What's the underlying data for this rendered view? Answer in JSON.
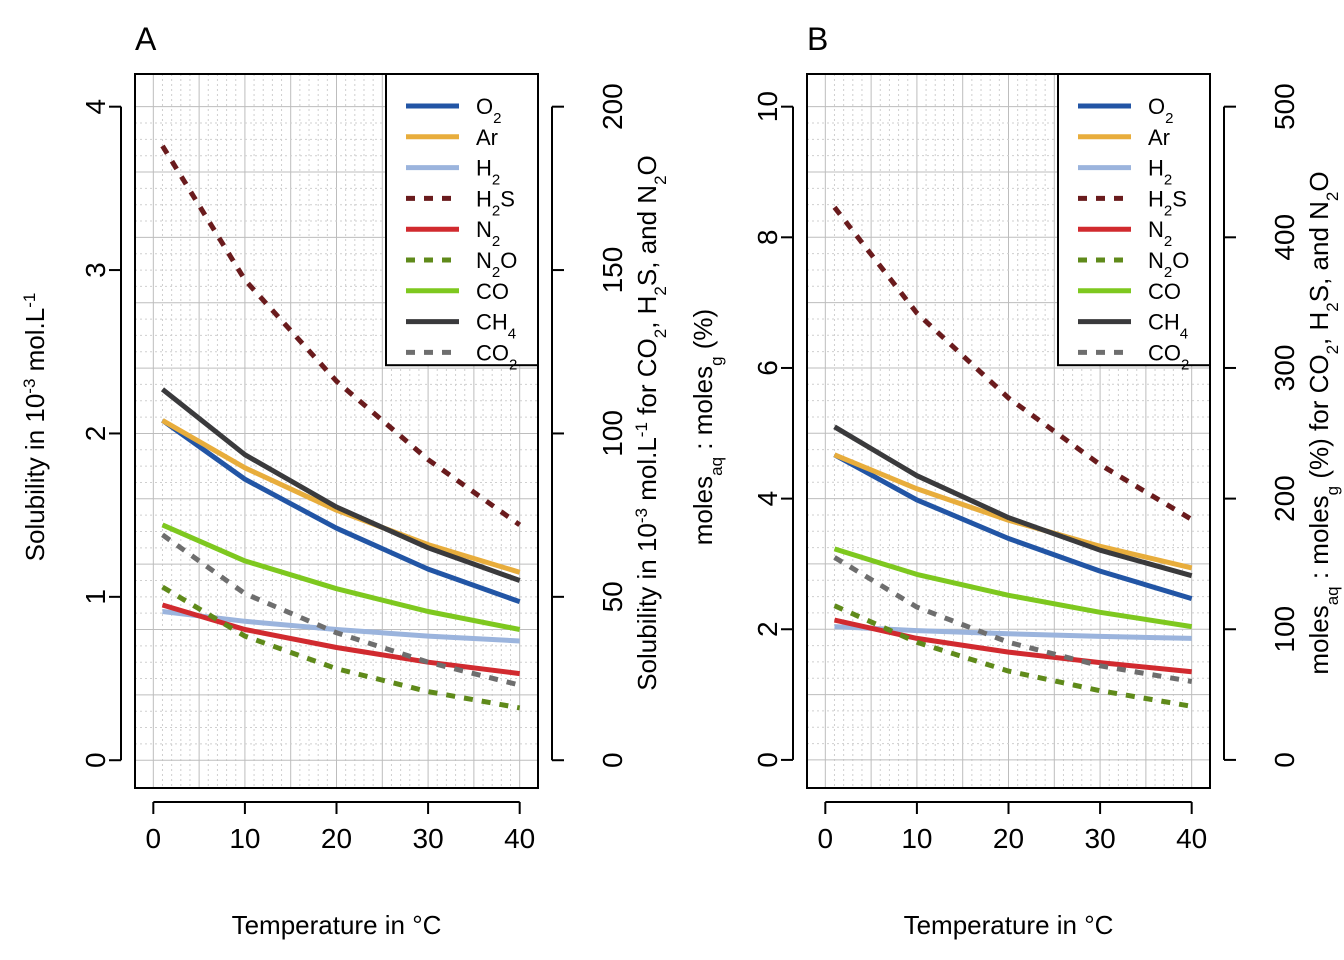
{
  "chart_data": [
    {
      "type": "line",
      "panel_label": "A",
      "xlabel": "Temperature in °C",
      "ylabel_left_html": "Solubility in 10<tspan baseline-shift='super' font-size='17'>-3</tspan> mol.L<tspan baseline-shift='super' font-size='17'>-1</tspan>",
      "ylabel_right_html": "Solubility in 10<tspan baseline-shift='super' font-size='17'>-3</tspan> mol.L<tspan baseline-shift='super' font-size='17'>-1</tspan> for CO<tspan baseline-shift='sub' font-size='17'>2</tspan>, H<tspan baseline-shift='sub' font-size='17'>2</tspan>S, and N<tspan baseline-shift='sub' font-size='17'>2</tspan>O",
      "xlim": [
        -2,
        42
      ],
      "xticks": [
        0,
        10,
        20,
        30,
        40
      ],
      "ylim": [
        -0.17,
        4.2
      ],
      "yticks_left": [
        0,
        1,
        2,
        3,
        4
      ],
      "right_axis_scale": 50,
      "yticks_right": [
        0,
        50,
        100,
        150,
        200
      ],
      "grid": true,
      "legend_position": "top-right",
      "series": [
        {
          "name": "O2",
          "label_html": "O<tspan baseline-shift='sub' font-size='15'>2</tspan>",
          "color": "#2255a5",
          "dashed": false,
          "axis": "left",
          "x": [
            1,
            10,
            20,
            30,
            40
          ],
          "y": [
            2.08,
            1.72,
            1.42,
            1.17,
            0.97
          ]
        },
        {
          "name": "Ar",
          "label_html": "Ar",
          "color": "#e8ad3c",
          "dashed": false,
          "axis": "left",
          "x": [
            1,
            10,
            20,
            30,
            40
          ],
          "y": [
            2.08,
            1.79,
            1.53,
            1.32,
            1.15
          ]
        },
        {
          "name": "H2",
          "label_html": "H<tspan baseline-shift='sub' font-size='15'>2</tspan>",
          "color": "#9bb4dd",
          "dashed": false,
          "axis": "left",
          "x": [
            1,
            10,
            20,
            30,
            40
          ],
          "y": [
            0.91,
            0.85,
            0.8,
            0.76,
            0.73
          ]
        },
        {
          "name": "H2S",
          "label_html": "H<tspan baseline-shift='sub' font-size='15'>2</tspan>S",
          "color": "#6a1b1d",
          "dashed": true,
          "axis": "right",
          "x": [
            1,
            10,
            20,
            30,
            40
          ],
          "y": [
            188,
            147,
            116,
            92,
            72
          ]
        },
        {
          "name": "N2",
          "label_html": "N<tspan baseline-shift='sub' font-size='15'>2</tspan>",
          "color": "#d12a2f",
          "dashed": false,
          "axis": "left",
          "x": [
            1,
            10,
            20,
            30,
            40
          ],
          "y": [
            0.95,
            0.8,
            0.69,
            0.6,
            0.53
          ]
        },
        {
          "name": "N2O",
          "label_html": "N<tspan baseline-shift='sub' font-size='15'>2</tspan>O",
          "color": "#5f8a1a",
          "dashed": true,
          "axis": "right",
          "x": [
            1,
            10,
            20,
            30,
            40
          ],
          "y": [
            53,
            38,
            28,
            21,
            16
          ]
        },
        {
          "name": "CO",
          "label_html": "CO",
          "color": "#7ec81f",
          "dashed": false,
          "axis": "left",
          "x": [
            1,
            10,
            20,
            30,
            40
          ],
          "y": [
            1.44,
            1.22,
            1.05,
            0.91,
            0.8
          ]
        },
        {
          "name": "CH4",
          "label_html": "CH<tspan baseline-shift='sub' font-size='15'>4</tspan>",
          "color": "#3a3a3c",
          "dashed": false,
          "axis": "left",
          "x": [
            1,
            10,
            20,
            30,
            40
          ],
          "y": [
            2.27,
            1.87,
            1.55,
            1.3,
            1.1
          ]
        },
        {
          "name": "CO2",
          "label_html": "CO<tspan baseline-shift='sub' font-size='15'>2</tspan>",
          "color": "#6e6e6e",
          "dashed": true,
          "axis": "right",
          "x": [
            1,
            10,
            20,
            30,
            40
          ],
          "y": [
            69,
            51,
            39,
            30,
            23
          ]
        }
      ]
    },
    {
      "type": "line",
      "panel_label": "B",
      "xlabel": "Temperature in °C",
      "ylabel_left_html": "moles<tspan baseline-shift='sub' font-size='17'>aq</tspan> : moles<tspan baseline-shift='sub' font-size='17'>g</tspan> (%)",
      "ylabel_right_html": "moles<tspan baseline-shift='sub' font-size='17'>aq</tspan> : moles<tspan baseline-shift='sub' font-size='17'>g</tspan> (%) for CO<tspan baseline-shift='sub' font-size='17'>2</tspan>, H<tspan baseline-shift='sub' font-size='17'>2</tspan>S, and N<tspan baseline-shift='sub' font-size='17'>2</tspan>O",
      "xlim": [
        -2,
        42
      ],
      "xticks": [
        0,
        10,
        20,
        30,
        40
      ],
      "ylim": [
        -0.43,
        10.5
      ],
      "yticks_left": [
        0,
        2,
        4,
        6,
        8,
        10
      ],
      "right_axis_scale": 50,
      "yticks_right": [
        0,
        100,
        200,
        300,
        400,
        500
      ],
      "grid": true,
      "legend_position": "top-right",
      "series": [
        {
          "name": "O2",
          "label_html": "O<tspan baseline-shift='sub' font-size='15'>2</tspan>",
          "color": "#2255a5",
          "dashed": false,
          "axis": "left",
          "x": [
            1,
            10,
            20,
            30,
            40
          ],
          "y": [
            4.67,
            3.98,
            3.39,
            2.89,
            2.47
          ]
        },
        {
          "name": "Ar",
          "label_html": "Ar",
          "color": "#e8ad3c",
          "dashed": false,
          "axis": "left",
          "x": [
            1,
            10,
            20,
            30,
            40
          ],
          "y": [
            4.67,
            4.15,
            3.67,
            3.27,
            2.94
          ]
        },
        {
          "name": "H2",
          "label_html": "H<tspan baseline-shift='sub' font-size='15'>2</tspan>",
          "color": "#9bb4dd",
          "dashed": false,
          "axis": "left",
          "x": [
            1,
            10,
            20,
            30,
            40
          ],
          "y": [
            2.04,
            1.98,
            1.93,
            1.89,
            1.86
          ]
        },
        {
          "name": "H2S",
          "label_html": "H<tspan baseline-shift='sub' font-size='15'>2</tspan>S",
          "color": "#6a1b1d",
          "dashed": true,
          "axis": "right",
          "x": [
            1,
            10,
            20,
            30,
            40
          ],
          "y": [
            423,
            342,
            277,
            226,
            184
          ]
        },
        {
          "name": "N2",
          "label_html": "N<tspan baseline-shift='sub' font-size='15'>2</tspan>",
          "color": "#d12a2f",
          "dashed": false,
          "axis": "left",
          "x": [
            1,
            10,
            20,
            30,
            40
          ],
          "y": [
            2.14,
            1.86,
            1.65,
            1.49,
            1.35
          ]
        },
        {
          "name": "N2O",
          "label_html": "N<tspan baseline-shift='sub' font-size='15'>2</tspan>O",
          "color": "#5f8a1a",
          "dashed": true,
          "axis": "right",
          "x": [
            1,
            10,
            20,
            30,
            40
          ],
          "y": [
            118,
            90,
            68,
            53,
            41
          ]
        },
        {
          "name": "CO",
          "label_html": "CO",
          "color": "#7ec81f",
          "dashed": false,
          "axis": "left",
          "x": [
            1,
            10,
            20,
            30,
            40
          ],
          "y": [
            3.23,
            2.84,
            2.52,
            2.26,
            2.04
          ]
        },
        {
          "name": "CH4",
          "label_html": "CH<tspan baseline-shift='sub' font-size='15'>4</tspan>",
          "color": "#3a3a3c",
          "dashed": false,
          "axis": "left",
          "x": [
            1,
            10,
            20,
            30,
            40
          ],
          "y": [
            5.1,
            4.35,
            3.71,
            3.21,
            2.82
          ]
        },
        {
          "name": "CO2",
          "label_html": "CO<tspan baseline-shift='sub' font-size='15'>2</tspan>",
          "color": "#6e6e6e",
          "dashed": true,
          "axis": "right",
          "x": [
            1,
            10,
            20,
            30,
            40
          ],
          "y": [
            155,
            117,
            90,
            72,
            60
          ]
        }
      ]
    }
  ]
}
